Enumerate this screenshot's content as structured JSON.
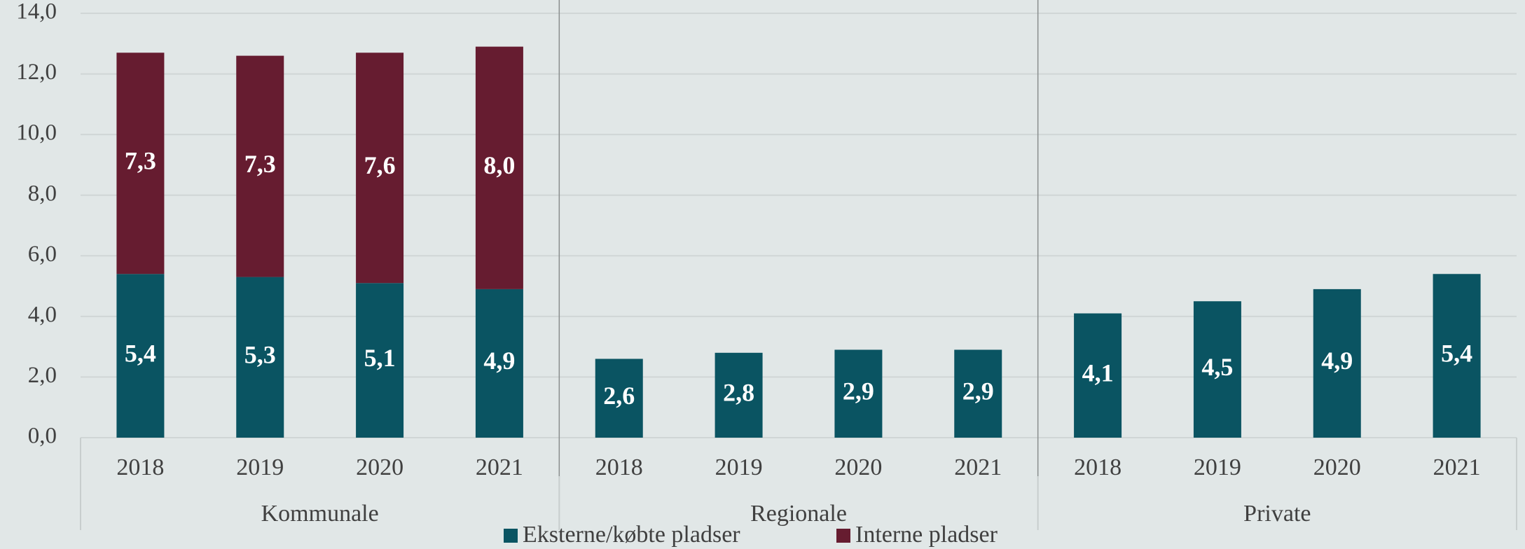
{
  "chart_data": {
    "type": "stacked_bar",
    "categories": [
      "2018",
      "2019",
      "2020",
      "2021",
      "2018",
      "2019",
      "2020",
      "2021",
      "2018",
      "2019",
      "2020",
      "2021"
    ],
    "groups": [
      "Kommunale",
      "Regionale",
      "Private"
    ],
    "series": [
      {
        "name": "Eksterne/købte pladser",
        "color": "#0a5462",
        "values": [
          5.4,
          5.3,
          5.1,
          4.9,
          2.6,
          2.8,
          2.9,
          2.9,
          4.1,
          4.5,
          4.9,
          5.4
        ],
        "value_labels": [
          "5,4",
          "5,3",
          "5,1",
          "4,9",
          "2,6",
          "2,8",
          "2,9",
          "2,9",
          "4,1",
          "4,5",
          "4,9",
          "5,4"
        ]
      },
      {
        "name": "Interne pladser",
        "color": "#661c30",
        "values": [
          7.3,
          7.3,
          7.6,
          8.0,
          null,
          null,
          null,
          null,
          null,
          null,
          null,
          null
        ],
        "value_labels": [
          "7,3",
          "7,3",
          "7,6",
          "8,0",
          null,
          null,
          null,
          null,
          null,
          null,
          null,
          null
        ]
      }
    ],
    "ylim": [
      0,
      14
    ],
    "yticks": [
      {
        "value": 0,
        "label": "0,0"
      },
      {
        "value": 2,
        "label": "2,0"
      },
      {
        "value": 4,
        "label": "4,0"
      },
      {
        "value": 6,
        "label": "6,0"
      },
      {
        "value": 8,
        "label": "8,0"
      },
      {
        "value": 10,
        "label": "10,0"
      },
      {
        "value": 12,
        "label": "12,0"
      },
      {
        "value": 14,
        "label": "14,0"
      }
    ],
    "grid": true,
    "legend": "bottom"
  }
}
